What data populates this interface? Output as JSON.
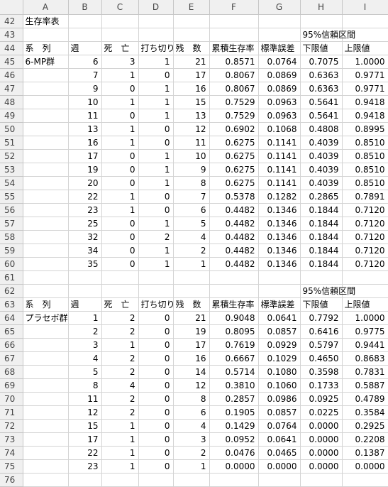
{
  "columns": [
    "",
    "A",
    "B",
    "C",
    "D",
    "E",
    "F",
    "G",
    "H",
    "I"
  ],
  "rows": [
    {
      "n": "42",
      "a": "生存率表",
      "b": "",
      "c": "",
      "d": "",
      "e": "",
      "f": "",
      "g": "",
      "h": "",
      "i": ""
    },
    {
      "n": "43",
      "a": "",
      "b": "",
      "c": "",
      "d": "",
      "e": "",
      "f": "",
      "g": "",
      "h": "95%信頼区間",
      "i": ""
    },
    {
      "n": "44",
      "a": "系　列",
      "b": "週",
      "c": "死　亡",
      "d": "打ち切り",
      "e": "残　数",
      "f": "累積生存率",
      "g": "標準誤差",
      "h": "下限値",
      "i": "上限値"
    },
    {
      "n": "45",
      "a": "6-MP群",
      "b": "6",
      "c": "3",
      "d": "1",
      "e": "21",
      "f": "0.8571",
      "g": "0.0764",
      "h": "0.7075",
      "i": "1.0000"
    },
    {
      "n": "46",
      "a": "",
      "b": "7",
      "c": "1",
      "d": "0",
      "e": "17",
      "f": "0.8067",
      "g": "0.0869",
      "h": "0.6363",
      "i": "0.9771"
    },
    {
      "n": "47",
      "a": "",
      "b": "9",
      "c": "0",
      "d": "1",
      "e": "16",
      "f": "0.8067",
      "g": "0.0869",
      "h": "0.6363",
      "i": "0.9771"
    },
    {
      "n": "48",
      "a": "",
      "b": "10",
      "c": "1",
      "d": "1",
      "e": "15",
      "f": "0.7529",
      "g": "0.0963",
      "h": "0.5641",
      "i": "0.9418"
    },
    {
      "n": "49",
      "a": "",
      "b": "11",
      "c": "0",
      "d": "1",
      "e": "13",
      "f": "0.7529",
      "g": "0.0963",
      "h": "0.5641",
      "i": "0.9418"
    },
    {
      "n": "50",
      "a": "",
      "b": "13",
      "c": "1",
      "d": "0",
      "e": "12",
      "f": "0.6902",
      "g": "0.1068",
      "h": "0.4808",
      "i": "0.8995"
    },
    {
      "n": "51",
      "a": "",
      "b": "16",
      "c": "1",
      "d": "0",
      "e": "11",
      "f": "0.6275",
      "g": "0.1141",
      "h": "0.4039",
      "i": "0.8510"
    },
    {
      "n": "52",
      "a": "",
      "b": "17",
      "c": "0",
      "d": "1",
      "e": "10",
      "f": "0.6275",
      "g": "0.1141",
      "h": "0.4039",
      "i": "0.8510"
    },
    {
      "n": "53",
      "a": "",
      "b": "19",
      "c": "0",
      "d": "1",
      "e": "9",
      "f": "0.6275",
      "g": "0.1141",
      "h": "0.4039",
      "i": "0.8510"
    },
    {
      "n": "54",
      "a": "",
      "b": "20",
      "c": "0",
      "d": "1",
      "e": "8",
      "f": "0.6275",
      "g": "0.1141",
      "h": "0.4039",
      "i": "0.8510"
    },
    {
      "n": "55",
      "a": "",
      "b": "22",
      "c": "1",
      "d": "0",
      "e": "7",
      "f": "0.5378",
      "g": "0.1282",
      "h": "0.2865",
      "i": "0.7891"
    },
    {
      "n": "56",
      "a": "",
      "b": "23",
      "c": "1",
      "d": "0",
      "e": "6",
      "f": "0.4482",
      "g": "0.1346",
      "h": "0.1844",
      "i": "0.7120"
    },
    {
      "n": "57",
      "a": "",
      "b": "25",
      "c": "0",
      "d": "1",
      "e": "5",
      "f": "0.4482",
      "g": "0.1346",
      "h": "0.1844",
      "i": "0.7120"
    },
    {
      "n": "58",
      "a": "",
      "b": "32",
      "c": "0",
      "d": "2",
      "e": "4",
      "f": "0.4482",
      "g": "0.1346",
      "h": "0.1844",
      "i": "0.7120"
    },
    {
      "n": "59",
      "a": "",
      "b": "34",
      "c": "0",
      "d": "1",
      "e": "2",
      "f": "0.4482",
      "g": "0.1346",
      "h": "0.1844",
      "i": "0.7120"
    },
    {
      "n": "60",
      "a": "",
      "b": "35",
      "c": "0",
      "d": "1",
      "e": "1",
      "f": "0.4482",
      "g": "0.1346",
      "h": "0.1844",
      "i": "0.7120"
    },
    {
      "n": "61",
      "a": "",
      "b": "",
      "c": "",
      "d": "",
      "e": "",
      "f": "",
      "g": "",
      "h": "",
      "i": ""
    },
    {
      "n": "62",
      "a": "",
      "b": "",
      "c": "",
      "d": "",
      "e": "",
      "f": "",
      "g": "",
      "h": "95%信頼区間",
      "i": ""
    },
    {
      "n": "63",
      "a": "系　列",
      "b": "週",
      "c": "死　亡",
      "d": "打ち切り",
      "e": "残　数",
      "f": "累積生存率",
      "g": "標準誤差",
      "h": "下限値",
      "i": "上限値"
    },
    {
      "n": "64",
      "a": "プラセボ群",
      "b": "1",
      "c": "2",
      "d": "0",
      "e": "21",
      "f": "0.9048",
      "g": "0.0641",
      "h": "0.7792",
      "i": "1.0000"
    },
    {
      "n": "65",
      "a": "",
      "b": "2",
      "c": "2",
      "d": "0",
      "e": "19",
      "f": "0.8095",
      "g": "0.0857",
      "h": "0.6416",
      "i": "0.9775"
    },
    {
      "n": "66",
      "a": "",
      "b": "3",
      "c": "1",
      "d": "0",
      "e": "17",
      "f": "0.7619",
      "g": "0.0929",
      "h": "0.5797",
      "i": "0.9441"
    },
    {
      "n": "67",
      "a": "",
      "b": "4",
      "c": "2",
      "d": "0",
      "e": "16",
      "f": "0.6667",
      "g": "0.1029",
      "h": "0.4650",
      "i": "0.8683"
    },
    {
      "n": "68",
      "a": "",
      "b": "5",
      "c": "2",
      "d": "0",
      "e": "14",
      "f": "0.5714",
      "g": "0.1080",
      "h": "0.3598",
      "i": "0.7831"
    },
    {
      "n": "69",
      "a": "",
      "b": "8",
      "c": "4",
      "d": "0",
      "e": "12",
      "f": "0.3810",
      "g": "0.1060",
      "h": "0.1733",
      "i": "0.5887"
    },
    {
      "n": "70",
      "a": "",
      "b": "11",
      "c": "2",
      "d": "0",
      "e": "8",
      "f": "0.2857",
      "g": "0.0986",
      "h": "0.0925",
      "i": "0.4789"
    },
    {
      "n": "71",
      "a": "",
      "b": "12",
      "c": "2",
      "d": "0",
      "e": "6",
      "f": "0.1905",
      "g": "0.0857",
      "h": "0.0225",
      "i": "0.3584"
    },
    {
      "n": "72",
      "a": "",
      "b": "15",
      "c": "1",
      "d": "0",
      "e": "4",
      "f": "0.1429",
      "g": "0.0764",
      "h": "0.0000",
      "i": "0.2925"
    },
    {
      "n": "73",
      "a": "",
      "b": "17",
      "c": "1",
      "d": "0",
      "e": "3",
      "f": "0.0952",
      "g": "0.0641",
      "h": "0.0000",
      "i": "0.2208"
    },
    {
      "n": "74",
      "a": "",
      "b": "22",
      "c": "1",
      "d": "0",
      "e": "2",
      "f": "0.0476",
      "g": "0.0465",
      "h": "0.0000",
      "i": "0.1387"
    },
    {
      "n": "75",
      "a": "",
      "b": "23",
      "c": "1",
      "d": "0",
      "e": "1",
      "f": "0.0000",
      "g": "0.0000",
      "h": "0.0000",
      "i": "0.0000"
    },
    {
      "n": "76",
      "a": "",
      "b": "",
      "c": "",
      "d": "",
      "e": "",
      "f": "",
      "g": "",
      "h": "",
      "i": ""
    }
  ]
}
